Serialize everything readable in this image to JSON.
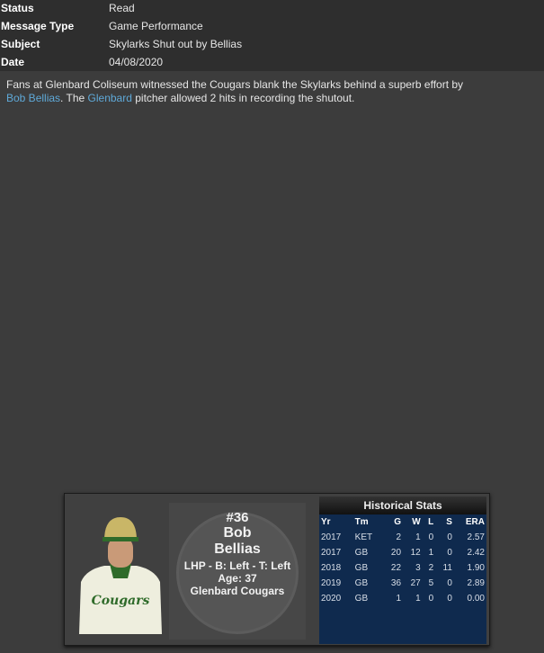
{
  "header": {
    "rows": [
      {
        "label": "Status",
        "value": "Read"
      },
      {
        "label": "Message Type",
        "value": "Game Performance"
      },
      {
        "label": "Subject",
        "value": "Skylarks Shut out by Bellias"
      },
      {
        "label": "Date",
        "value": "04/08/2020"
      }
    ]
  },
  "message": {
    "part1": "Fans at Glenbard Coliseum witnessed the Cougars blank the Skylarks behind a superb effort by ",
    "link_player": "Bob Bellias",
    "part2": ". The ",
    "link_team": "Glenbard",
    "part3": " pitcher allowed 2 hits in recording the shutout."
  },
  "player": {
    "number": "#36",
    "first": "Bob",
    "last": "Bellias",
    "bio": "LHP - B: Left - T: Left",
    "age": "Age: 37",
    "team": "Glenbard Cougars",
    "jersey_text": "Cougars"
  },
  "stats": {
    "title": "Historical Stats",
    "columns": [
      "Yr",
      "Tm",
      "G",
      "W",
      "L",
      "S",
      "ERA"
    ],
    "rows": [
      [
        "2017",
        "KET",
        "2",
        "1",
        "0",
        "0",
        "2.57"
      ],
      [
        "2017",
        "GB",
        "20",
        "12",
        "1",
        "0",
        "2.42"
      ],
      [
        "2018",
        "GB",
        "22",
        "3",
        "2",
        "11",
        "1.90"
      ],
      [
        "2019",
        "GB",
        "36",
        "27",
        "5",
        "0",
        "2.89"
      ],
      [
        "2020",
        "GB",
        "1",
        "1",
        "0",
        "0",
        "0.00"
      ]
    ]
  }
}
